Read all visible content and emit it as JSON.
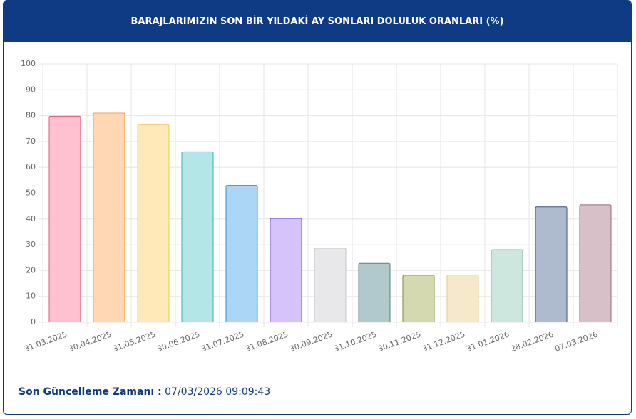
{
  "chart_data": {
    "type": "bar",
    "title": "BARAJLARIMIZIN SON BİR YILDAKİ AY SONLARI DOLULUK ORANLARI (%)",
    "categories": [
      "31.03.2025",
      "30.04.2025",
      "31.05.2025",
      "30.06.2025",
      "31.07.2025",
      "31.08.2025",
      "30.09.2025",
      "31.10.2025",
      "30.11.2025",
      "31.12.2025",
      "31.01.2026",
      "28.02.2026",
      "07.03.2026"
    ],
    "values": [
      79.8,
      81,
      76.5,
      66,
      53,
      40.2,
      28.7,
      22.8,
      18.2,
      18.3,
      28.1,
      44.7,
      45.5
    ],
    "colors": [
      "#ffc1d0",
      "#ffd7b2",
      "#ffe9b9",
      "#b3e6e6",
      "#acd6f6",
      "#d6c3fb",
      "#e8e8ea",
      "#b1c9cc",
      "#d4d9b0",
      "#f6e9c9",
      "#cde7df",
      "#aebbcf",
      "#d7c0c7"
    ],
    "border_colors": [
      "#e2587a",
      "#f0a152",
      "#f3c65e",
      "#3fb1b1",
      "#3a8fd1",
      "#8b5bd9",
      "#c3c3ca",
      "#5c8086",
      "#7e8b31",
      "#e2c88f",
      "#7bb9a6",
      "#3e5076",
      "#9b6979"
    ],
    "ylim": [
      0,
      100
    ],
    "yticks": [
      0,
      10,
      20,
      30,
      40,
      50,
      60,
      70,
      80,
      90,
      100
    ],
    "grid": true
  },
  "footer": {
    "label": "Son Güncelleme Zamanı :",
    "value": "07/03/2026 09:09:43"
  }
}
